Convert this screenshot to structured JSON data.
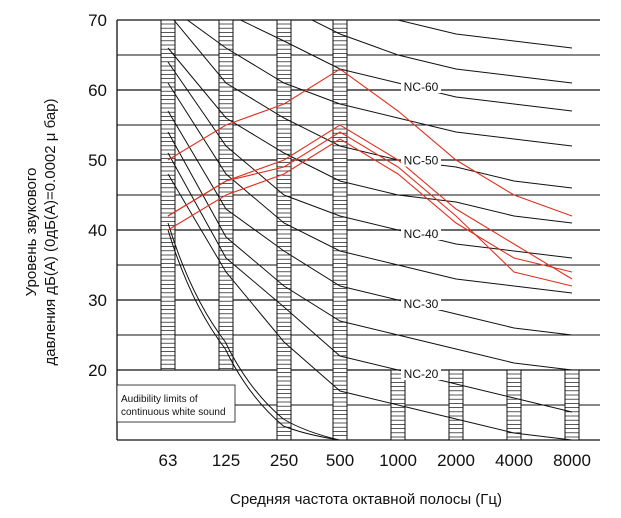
{
  "chart_data": {
    "type": "line",
    "title": "",
    "xlabel": "Средняя частота октавной полосы (Гц)",
    "ylabel_lines": [
      "Уровень звукового",
      "давления дБ(А) (0дБ(A)=0.0002 μ бар)"
    ],
    "categories": [
      "63",
      "125",
      "250",
      "500",
      "1000",
      "2000",
      "4000",
      "8000"
    ],
    "y_ticks": [
      20,
      30,
      40,
      50,
      60,
      70
    ],
    "ylim": [
      10,
      70
    ],
    "grid": "horizontal every 5 dB; hatched vertical bands at each octave band",
    "nc_curves": [
      {
        "label": "",
        "values": [
          88,
          82,
          77,
          73,
          70,
          68,
          67,
          66
        ]
      },
      {
        "label": "",
        "values": [
          83,
          77,
          72,
          68,
          65,
          63,
          62,
          61
        ]
      },
      {
        "label": "NC-60",
        "values": [
          77,
          71,
          67,
          63,
          61,
          59,
          58,
          57
        ]
      },
      {
        "label": "",
        "values": [
          72,
          66,
          61,
          58,
          56,
          54,
          53,
          52
        ]
      },
      {
        "label": "NC-50",
        "values": [
          71,
          61,
          56,
          52,
          50,
          49,
          47,
          46
        ]
      },
      {
        "label": "",
        "values": [
          66,
          56,
          51,
          47,
          45,
          44,
          42,
          41
        ]
      },
      {
        "label": "NC-40",
        "values": [
          64,
          52,
          45,
          42,
          40,
          38,
          37,
          36
        ]
      },
      {
        "label": "",
        "values": [
          61,
          48,
          41,
          37,
          35,
          33,
          32,
          31
        ]
      },
      {
        "label": "NC-30",
        "values": [
          57,
          43,
          37,
          32,
          30,
          28,
          26,
          25
        ]
      },
      {
        "label": "",
        "values": [
          54,
          39,
          32,
          27,
          25,
          23,
          21,
          20
        ]
      },
      {
        "label": "NC-20",
        "values": [
          51,
          36,
          29,
          22,
          20,
          18,
          16,
          14
        ]
      },
      {
        "label": "",
        "values": [
          48,
          34,
          24,
          17,
          15,
          13,
          11,
          10
        ]
      }
    ],
    "audibility_limits": {
      "label_lines": [
        "Audibility limits of",
        "continuous white sound"
      ],
      "curves": [
        {
          "x": [
            63,
            125,
            250,
            500
          ],
          "values": [
            41,
            24,
            13,
            10
          ]
        },
        {
          "x": [
            63,
            125,
            250,
            500
          ],
          "values": [
            40,
            23,
            12,
            10
          ]
        }
      ]
    },
    "measured_series": [
      {
        "values": [
          50,
          55,
          58,
          63,
          57,
          50,
          45,
          42
        ]
      },
      {
        "values": [
          42,
          47,
          50,
          55,
          50,
          43,
          38,
          33
        ]
      },
      {
        "values": [
          40,
          45,
          48,
          53,
          48,
          41,
          36,
          34
        ]
      },
      {
        "values": [
          42,
          47,
          49,
          54,
          49,
          42,
          34,
          32
        ]
      }
    ],
    "colors": {
      "curves": "#111111",
      "measured": "#e03020",
      "grid": "#111111"
    }
  }
}
